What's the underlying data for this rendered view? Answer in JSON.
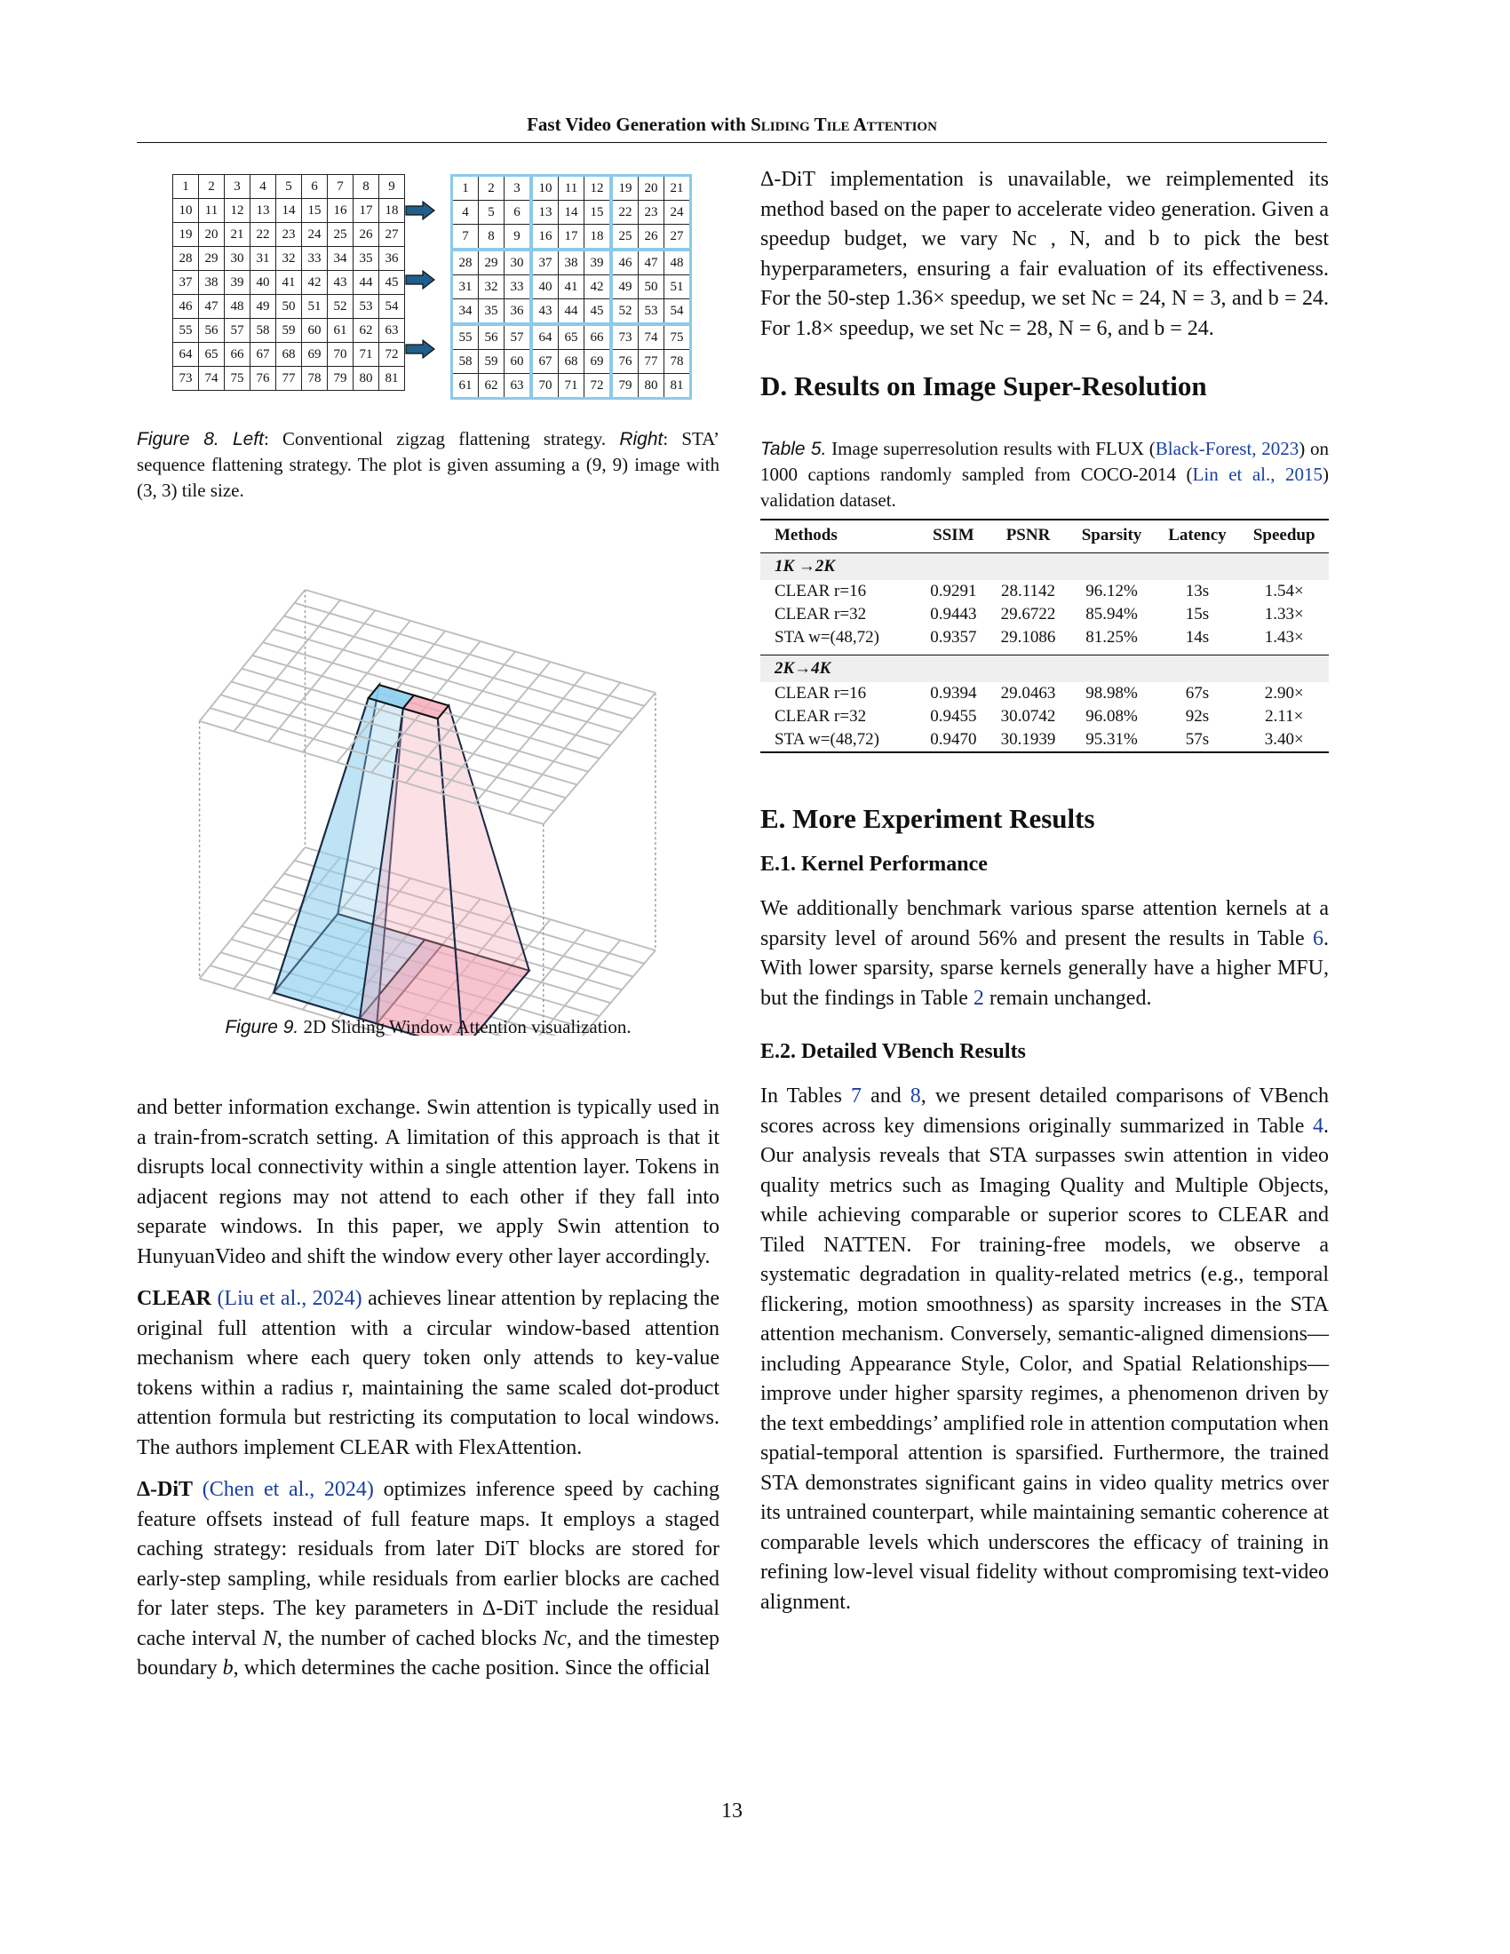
{
  "header": {
    "title_lead": "Fast Video Generation with ",
    "title_sc": "Sliding Tile Attention"
  },
  "figure8": {
    "rows_left": [
      [
        "1",
        "2",
        "3",
        "4",
        "5",
        "6",
        "7",
        "8",
        "9"
      ],
      [
        "10",
        "11",
        "12",
        "13",
        "14",
        "15",
        "16",
        "17",
        "18"
      ],
      [
        "19",
        "20",
        "21",
        "22",
        "23",
        "24",
        "25",
        "26",
        "27"
      ],
      [
        "28",
        "29",
        "30",
        "31",
        "32",
        "33",
        "34",
        "35",
        "36"
      ],
      [
        "37",
        "38",
        "39",
        "40",
        "41",
        "42",
        "43",
        "44",
        "45"
      ],
      [
        "46",
        "47",
        "48",
        "49",
        "50",
        "51",
        "52",
        "53",
        "54"
      ],
      [
        "55",
        "56",
        "57",
        "58",
        "59",
        "60",
        "61",
        "62",
        "63"
      ],
      [
        "64",
        "65",
        "66",
        "67",
        "68",
        "69",
        "70",
        "71",
        "72"
      ],
      [
        "73",
        "74",
        "75",
        "76",
        "77",
        "78",
        "79",
        "80",
        "81"
      ]
    ],
    "rows_right": [
      [
        "1",
        "2",
        "3",
        "10",
        "11",
        "12",
        "19",
        "20",
        "21"
      ],
      [
        "4",
        "5",
        "6",
        "13",
        "14",
        "15",
        "22",
        "23",
        "24"
      ],
      [
        "7",
        "8",
        "9",
        "16",
        "17",
        "18",
        "25",
        "26",
        "27"
      ],
      [
        "28",
        "29",
        "30",
        "37",
        "38",
        "39",
        "46",
        "47",
        "48"
      ],
      [
        "31",
        "32",
        "33",
        "40",
        "41",
        "42",
        "49",
        "50",
        "51"
      ],
      [
        "34",
        "35",
        "36",
        "43",
        "44",
        "45",
        "52",
        "53",
        "54"
      ],
      [
        "55",
        "56",
        "57",
        "64",
        "65",
        "66",
        "73",
        "74",
        "75"
      ],
      [
        "58",
        "59",
        "60",
        "67",
        "68",
        "69",
        "76",
        "77",
        "78"
      ],
      [
        "61",
        "62",
        "63",
        "70",
        "71",
        "72",
        "79",
        "80",
        "81"
      ]
    ],
    "arrow_color": "#1f5f8a",
    "tile_color": "#8cc9ea",
    "caption_label": "Figure 8.",
    "caption_left": "Left",
    "caption_part1": ": Conventional zigzag flattening strategy. ",
    "caption_right": "Right",
    "caption_part2": ": STA’ sequence flattening strategy. The plot is given assuming a (9, 9) image with (3, 3) tile size."
  },
  "figure9": {
    "caption_label": "Figure 9.",
    "caption_text": " 2D Sliding Window Attention visualization.",
    "blue_color": "#8ccfee",
    "red_color": "#f4a7b7"
  },
  "left_column": {
    "swin_paragraph": "and better information exchange. Swin attention is typically used in a train-from-scratch setting. A limitation of this approach is that it disrupts local connectivity within a single attention layer. Tokens in adjacent regions may not attend to each other if they fall into separate windows. In this paper, we apply Swin attention to HunyuanVideo and shift the window every other layer accordingly.",
    "clear_title": "CLEAR",
    "clear_cite": "(Liu et al., 2024)",
    "clear_text": " achieves linear attention by replacing the original full attention with a circular window-based attention mechanism where each query token only attends to key-value tokens within a radius r, maintaining the same scaled dot-product attention formula but restricting its computation to local windows. The authors implement CLEAR with FlexAttention.",
    "dit_title": "Δ-DiT",
    "dit_cite": "(Chen et al., 2024)",
    "dit_text1": " optimizes inference speed by caching feature offsets instead of full feature maps. It employs a staged caching strategy: residuals from later DiT blocks are stored for early-step sampling, while residuals from earlier blocks are cached for later steps. The key parameters in Δ-DiT include the residual cache interval ",
    "dit_N": "N",
    "dit_text2": ", the number of cached blocks ",
    "dit_Nc": "Nc",
    "dit_text3": ", and the timestep boundary ",
    "dit_b": "b",
    "dit_text4": ", which determines the cache position. Since the official"
  },
  "right_column": {
    "continuation": "Δ-DiT implementation is unavailable, we reimplemented its method based on the paper to accelerate video generation. Given a speedup budget, we vary Nc , N, and b to pick the best hyperparameters, ensuring a fair evaluation of its effectiveness. For the 50-step 1.36× speedup, we set Nc = 24, N = 3, and b = 24. For 1.8× speedup, we set Nc = 28, N = 6, and b = 24.",
    "section_d": "D. Results on Image Super-Resolution",
    "table5_label": "Table 5.",
    "table5_text1": " Image superresolution results with FLUX (",
    "table5_cite1": "Black-Forest, 2023",
    "table5_text2": ") on 1000 captions randomly sampled from COCO-2014 (",
    "table5_cite2": "Lin et al., 2015",
    "table5_text3": ") validation dataset.",
    "section_e": "E. More Experiment Results",
    "sub_e1": "E.1. Kernel Performance",
    "e1_text1": "We additionally benchmark various sparse attention kernels at a sparsity level of around 56% and present the results in Table ",
    "e1_ref1": "6",
    "e1_text2": ". With lower sparsity, sparse kernels generally have a higher MFU, but the findings in Table ",
    "e1_ref2": "2",
    "e1_text3": " remain unchanged.",
    "sub_e2": "E.2. Detailed VBench Results",
    "e2_text1": "In Tables ",
    "e2_ref1": "7",
    "e2_text2": " and ",
    "e2_ref2": "8",
    "e2_text3": ", we present detailed comparisons of VBench scores across key dimensions originally summarized in Table ",
    "e2_ref3": "4",
    "e2_text4": ". Our analysis reveals that STA surpasses swin attention in video quality metrics such as Imaging Quality and Multiple Objects, while achieving comparable or superior scores to CLEAR and Tiled NATTEN. For training-free models, we observe a systematic degradation in quality-related metrics (e.g., temporal flickering, motion smoothness) as sparsity increases in the STA attention mechanism. Conversely, semantic-aligned dimensions—including Appearance Style, Color, and Spatial Relationships—improve under higher sparsity regimes, a phenomenon driven by the text embeddings’ amplified role in attention computation when spatial-temporal attention is sparsified. Furthermore, the trained STA demonstrates significant gains in video quality metrics over its untrained counterpart, while maintaining semantic coherence at comparable levels which underscores the efficacy of training in refining low-level visual fidelity without compromising text-video alignment."
  },
  "table5": {
    "headers": [
      "Methods",
      "SSIM",
      "PSNR",
      "Sparsity",
      "Latency",
      "Speedup"
    ],
    "groups": [
      {
        "label": "1K →2K",
        "rows": [
          [
            "CLEAR r=16",
            "0.9291",
            "28.1142",
            "96.12%",
            "13s",
            "1.54×"
          ],
          [
            "CLEAR r=32",
            "0.9443",
            "29.6722",
            "85.94%",
            "15s",
            "1.33×"
          ],
          [
            "STA w=(48,72)",
            "0.9357",
            "29.1086",
            "81.25%",
            "14s",
            "1.43×"
          ]
        ]
      },
      {
        "label": "2K→4K",
        "rows": [
          [
            "CLEAR r=16",
            "0.9394",
            "29.0463",
            "98.98%",
            "67s",
            "2.90×"
          ],
          [
            "CLEAR r=32",
            "0.9455",
            "30.0742",
            "96.08%",
            "92s",
            "2.11×"
          ],
          [
            "STA w=(48,72)",
            "0.9470",
            "30.1939",
            "95.31%",
            "57s",
            "3.40×"
          ]
        ]
      }
    ]
  },
  "footer": {
    "page_number": "13"
  }
}
